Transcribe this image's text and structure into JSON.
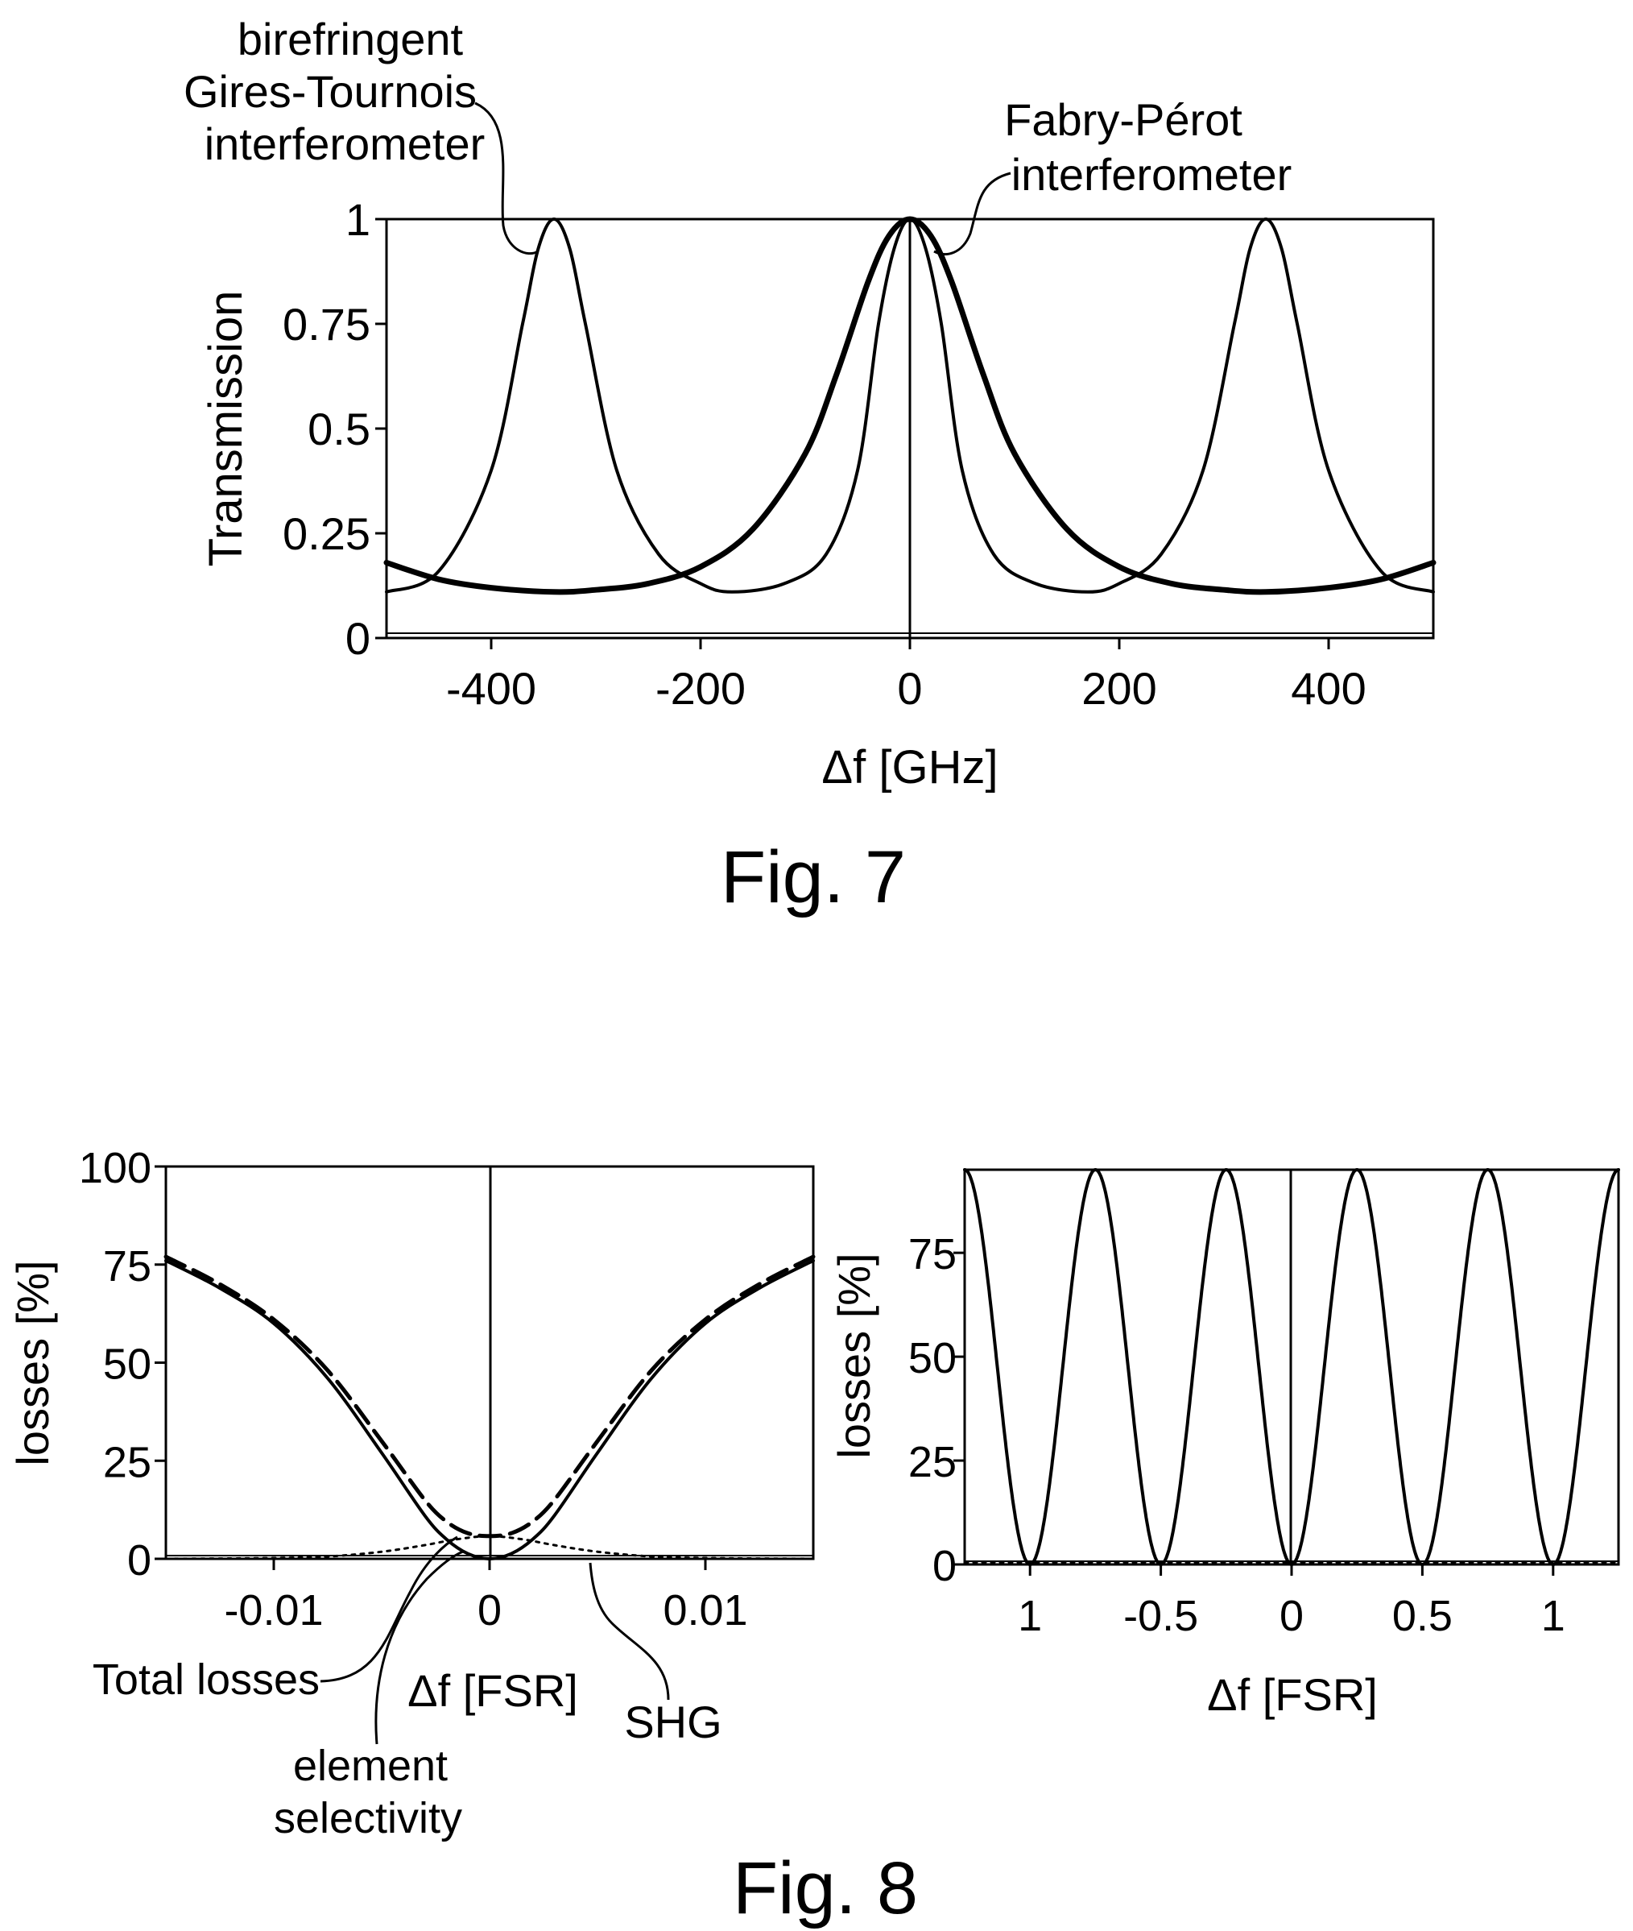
{
  "chart_data": [
    {
      "id": "fig7",
      "type": "line",
      "caption": "Fig. 7",
      "xlabel": "Δf [GHz]",
      "ylabel": "Transmission",
      "xlim": [
        -500,
        500
      ],
      "ylim": [
        0,
        1
      ],
      "xticks": [
        -400,
        -200,
        0,
        200,
        400
      ],
      "xtick_labels": [
        "-400",
        "-200",
        "0",
        "200",
        "400"
      ],
      "yticks": [
        0,
        0.25,
        0.5,
        0.75,
        1
      ],
      "ytick_labels": [
        "0",
        "0.25",
        "0.5",
        "0.75",
        "1"
      ],
      "grid": false,
      "series": [
        {
          "name": "birefringent Gires-Tournois interferometer",
          "style": "thin",
          "x": [
            -500,
            -450,
            -400,
            -370,
            -355,
            -340,
            -325,
            -310,
            -280,
            -240,
            -200,
            -170,
            -120,
            -80,
            -50,
            -30,
            -15,
            0,
            15,
            30,
            50,
            80,
            120,
            170,
            200,
            240,
            280,
            310,
            325,
            340,
            355,
            370,
            400,
            450,
            500
          ],
          "y": [
            0.11,
            0.16,
            0.4,
            0.75,
            0.93,
            1.0,
            0.93,
            0.75,
            0.4,
            0.2,
            0.13,
            0.11,
            0.13,
            0.2,
            0.4,
            0.75,
            0.93,
            1.0,
            0.93,
            0.75,
            0.4,
            0.2,
            0.13,
            0.11,
            0.13,
            0.2,
            0.4,
            0.75,
            0.93,
            1.0,
            0.93,
            0.75,
            0.4,
            0.16,
            0.11
          ]
        },
        {
          "name": "Fabry-Pérot interferometer",
          "style": "thick",
          "x": [
            -500,
            -450,
            -400,
            -340,
            -300,
            -250,
            -200,
            -150,
            -100,
            -70,
            -40,
            -20,
            0,
            20,
            40,
            70,
            100,
            150,
            200,
            250,
            300,
            340,
            400,
            450,
            500
          ],
          "y": [
            0.18,
            0.14,
            0.12,
            0.11,
            0.115,
            0.13,
            0.17,
            0.26,
            0.44,
            0.63,
            0.85,
            0.96,
            1.0,
            0.96,
            0.85,
            0.63,
            0.44,
            0.26,
            0.17,
            0.13,
            0.115,
            0.11,
            0.12,
            0.14,
            0.18
          ]
        }
      ],
      "annotations": [
        {
          "name": "gti-label",
          "lines": [
            "birefringent",
            "Gires-Tournois",
            "interferometer"
          ]
        },
        {
          "name": "fpi-label",
          "lines": [
            "Fabry-Pérot",
            "interferometer"
          ]
        }
      ]
    },
    {
      "id": "fig8-left",
      "type": "line",
      "caption": "Fig. 8",
      "xlabel": "Δf [FSR]",
      "ylabel": "losses [%]",
      "xlim": [
        -0.015,
        0.015
      ],
      "ylim": [
        0,
        100
      ],
      "xticks": [
        -0.01,
        0,
        0.01
      ],
      "xtick_labels": [
        "-0.01",
        "0",
        "0.01"
      ],
      "yticks": [
        0,
        25,
        50,
        75,
        100
      ],
      "ytick_labels": [
        "0",
        "25",
        "50",
        "75",
        "100"
      ],
      "grid": false,
      "series": [
        {
          "name": "Total losses",
          "style": "dashed",
          "x": [
            -0.015,
            -0.0125,
            -0.01,
            -0.0075,
            -0.005,
            -0.003,
            -0.002,
            -0.001,
            0,
            0.001,
            0.002,
            0.003,
            0.005,
            0.0075,
            0.01,
            0.0125,
            0.015
          ],
          "y": [
            77,
            70,
            61,
            48,
            30,
            15,
            9.5,
            6.5,
            5.8,
            6.5,
            9.5,
            15,
            30,
            48,
            61,
            70,
            77
          ]
        },
        {
          "name": "element selectivity",
          "style": "solid",
          "x": [
            -0.015,
            -0.0125,
            -0.01,
            -0.0075,
            -0.005,
            -0.003,
            -0.002,
            -0.001,
            0,
            0.001,
            0.002,
            0.003,
            0.005,
            0.0075,
            0.01,
            0.0125,
            0.015
          ],
          "y": [
            76,
            69,
            60,
            46,
            27,
            11,
            5,
            1.3,
            0,
            1.3,
            5,
            11,
            27,
            46,
            60,
            69,
            76
          ]
        },
        {
          "name": "SHG",
          "style": "dotted",
          "x": [
            -0.015,
            -0.01,
            -0.0075,
            -0.005,
            -0.003,
            -0.0015,
            0,
            0.0015,
            0.003,
            0.005,
            0.0075,
            0.01,
            0.015
          ],
          "y": [
            0,
            0.2,
            0.6,
            1.8,
            3.5,
            5,
            5.8,
            5,
            3.5,
            1.8,
            0.6,
            0.2,
            0
          ]
        }
      ],
      "annotations": [
        {
          "name": "total-losses-label",
          "lines": [
            "Total losses"
          ]
        },
        {
          "name": "element-selectivity-label",
          "lines": [
            "element",
            "selectivity"
          ]
        },
        {
          "name": "shg-label",
          "lines": [
            "SHG"
          ]
        }
      ]
    },
    {
      "id": "fig8-right",
      "type": "line",
      "xlabel": "Δf [FSR]",
      "ylabel": "losses [%]",
      "xlim": [
        -1.25,
        1.25
      ],
      "ylim": [
        0,
        95
      ],
      "xticks": [
        -1,
        -0.5,
        0,
        0.5,
        1
      ],
      "xtick_labels": [
        "1",
        "-0.5",
        "0",
        "0.5",
        "1"
      ],
      "yticks": [
        0,
        25,
        50,
        75
      ],
      "ytick_labels": [
        "0",
        "25",
        "50",
        "75"
      ],
      "grid": false,
      "series": [
        {
          "name": "total losses",
          "style": "solid",
          "formula": "95*sin^2(2*pi*x)",
          "x_period": 0.5,
          "peak": 95
        },
        {
          "name": "SHG",
          "style": "dotted",
          "x": [
            -1.25,
            1.25
          ],
          "y": [
            0.5,
            0.5
          ]
        }
      ]
    }
  ]
}
